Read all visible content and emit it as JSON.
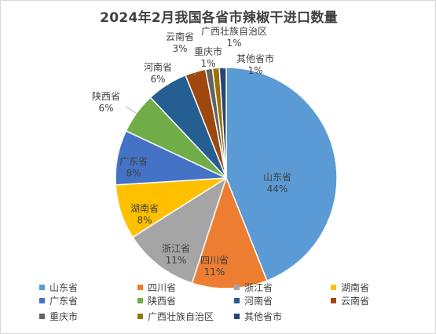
{
  "chart_data": {
    "type": "pie",
    "title": "2024年2月我国各省市辣椒干进口数量",
    "categories": [
      "山东省",
      "四川省",
      "浙江省",
      "湖南省",
      "广东省",
      "陕西省",
      "河南省",
      "云南省",
      "重庆市",
      "广西壮族自治区",
      "其他省市"
    ],
    "values": [
      44,
      11,
      11,
      8,
      8,
      6,
      6,
      3,
      1,
      1,
      1
    ],
    "data_labels": [
      "44%",
      "11%",
      "11%",
      "8%",
      "8%",
      "6%",
      "6%",
      "3%",
      "1%",
      "1%",
      "1%"
    ],
    "colors": [
      "#5b9bd5",
      "#ed7d31",
      "#a5a5a5",
      "#ffc000",
      "#4472c4",
      "#70ad47",
      "#255e91",
      "#9e480e",
      "#636363",
      "#997300",
      "#264478"
    ],
    "legend": {
      "position": "bottom"
    }
  }
}
